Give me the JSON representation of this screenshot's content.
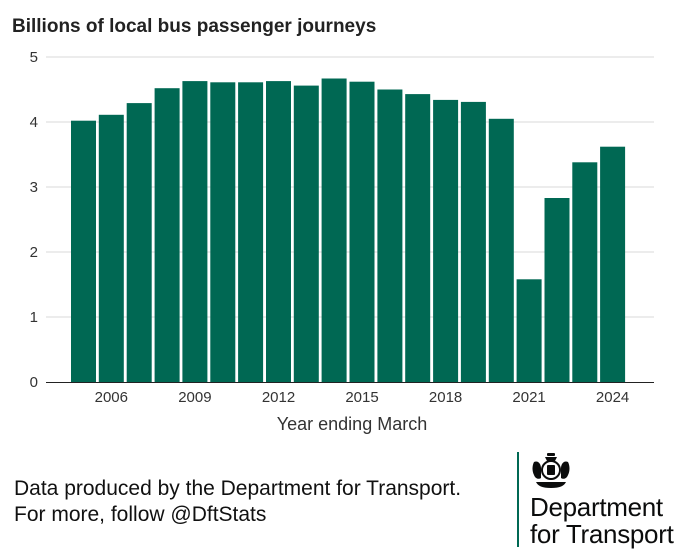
{
  "chart_data": {
    "type": "bar",
    "title": "Billions of local bus passenger journeys",
    "xlabel": "Year ending March",
    "ylabel": "",
    "ylim": [
      0,
      5
    ],
    "yticks": [
      "0",
      "1",
      "2",
      "3",
      "4",
      "5"
    ],
    "grid": true,
    "bar_color": "#006853",
    "categories": [
      "2005",
      "2006",
      "2007",
      "2008",
      "2009",
      "2010",
      "2011",
      "2012",
      "2013",
      "2014",
      "2015",
      "2016",
      "2017",
      "2018",
      "2019",
      "2020",
      "2021",
      "2022",
      "2023",
      "2024"
    ],
    "values": [
      4.02,
      4.11,
      4.29,
      4.52,
      4.63,
      4.61,
      4.61,
      4.63,
      4.56,
      4.67,
      4.62,
      4.5,
      4.43,
      4.34,
      4.31,
      4.05,
      1.58,
      2.83,
      3.38,
      3.62
    ],
    "xtick_labels": [
      "2006",
      "2009",
      "2012",
      "2015",
      "2018",
      "2021",
      "2024"
    ]
  },
  "footer": {
    "line1": "Data produced by the Department for Transport.",
    "line2": "For more, follow @DftStats"
  },
  "brand": {
    "line1": "Department",
    "line2": "for Transport",
    "crest_icon": "royal-crest-icon"
  }
}
